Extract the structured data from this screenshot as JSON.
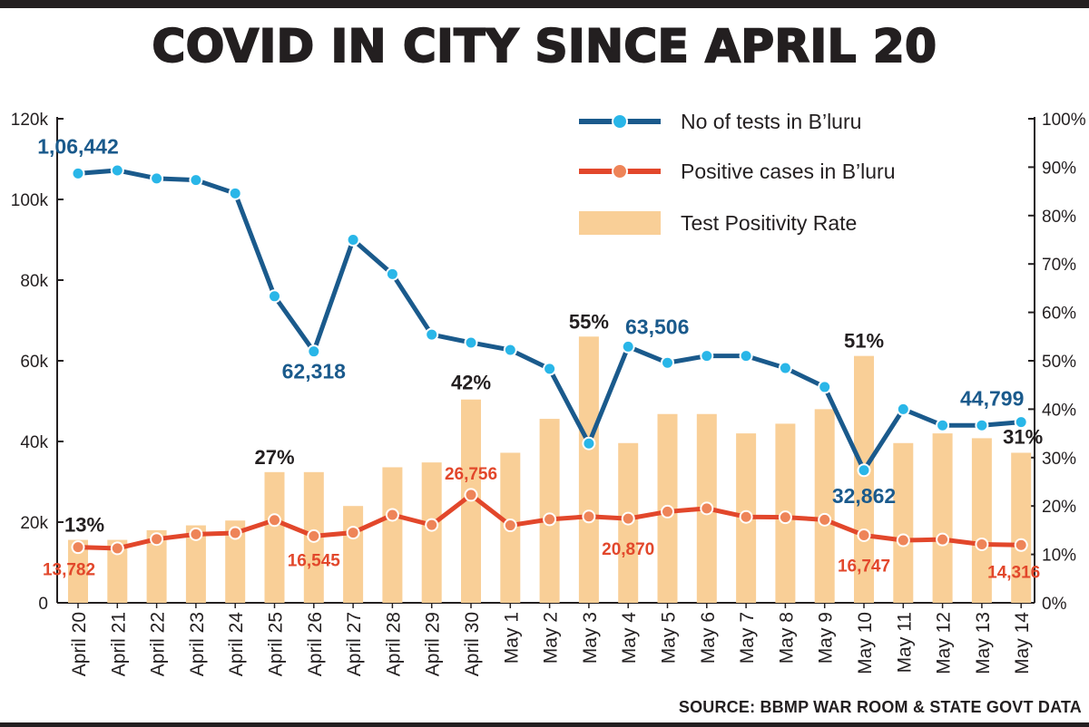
{
  "title": "COVID IN CITY SINCE APRIL 20",
  "source": "SOURCE: BBMP WAR ROOM & STATE GOVT DATA",
  "colors": {
    "tests": "#1a5a8c",
    "tests_marker": "#29b6e8",
    "positive": "#e2472b",
    "positive_marker": "#ee8458",
    "rate": "#f9cf97"
  },
  "chart_data": {
    "type": "bar+line",
    "categories": [
      "April 20",
      "April 21",
      "April 22",
      "April 23",
      "April 24",
      "April 25",
      "April 26",
      "April 27",
      "April 28",
      "April 29",
      "April 30",
      "May 1",
      "May 2",
      "May 3",
      "May 4",
      "May 5",
      "May 6",
      "May 7",
      "May 8",
      "May 9",
      "May 10",
      "May 11",
      "May 12",
      "May 13",
      "May 14"
    ],
    "series": [
      {
        "name": "No of tests in B’luru",
        "kind": "line",
        "axis": "left",
        "values": [
          106442,
          107200,
          105200,
          104800,
          101500,
          76000,
          62318,
          90000,
          81500,
          66500,
          64500,
          62700,
          58000,
          39500,
          63506,
          59500,
          61200,
          61200,
          58200,
          53500,
          32862,
          48000,
          44000,
          44000,
          44799
        ]
      },
      {
        "name": "Positive cases in B’luru",
        "kind": "line",
        "axis": "left",
        "values": [
          13782,
          13500,
          15800,
          17000,
          17300,
          20500,
          16545,
          17400,
          21800,
          19300,
          26756,
          19200,
          20700,
          21400,
          20870,
          22600,
          23400,
          21300,
          21200,
          20600,
          16747,
          15500,
          15700,
          14500,
          14316
        ]
      },
      {
        "name": "Test Positivity Rate",
        "kind": "bar",
        "axis": "right",
        "values": [
          13,
          13,
          15,
          16,
          17,
          27,
          27,
          20,
          28,
          29,
          42,
          31,
          38,
          55,
          33,
          39,
          39,
          35,
          37,
          40,
          51,
          33,
          35,
          34,
          31
        ]
      }
    ],
    "left_axis": {
      "ylim": [
        0,
        120000
      ],
      "ticks": [
        "0",
        "20k",
        "40k",
        "60k",
        "80k",
        "100k",
        "120k"
      ]
    },
    "right_axis": {
      "ylim": [
        0,
        100
      ],
      "ticks": [
        "0%",
        "10%",
        "20%",
        "30%",
        "40%",
        "50%",
        "60%",
        "70%",
        "80%",
        "90%",
        "100%"
      ]
    },
    "annotations": {
      "tests": [
        {
          "i": 0,
          "text": "1,06,442"
        },
        {
          "i": 6,
          "text": "62,318"
        },
        {
          "i": 14,
          "text": "63,506"
        },
        {
          "i": 20,
          "text": "32,862"
        },
        {
          "i": 24,
          "text": "44,799"
        }
      ],
      "positive": [
        {
          "i": 0,
          "text": "13,782"
        },
        {
          "i": 6,
          "text": "16,545"
        },
        {
          "i": 10,
          "text": "26,756"
        },
        {
          "i": 14,
          "text": "20,870"
        },
        {
          "i": 20,
          "text": "16,747"
        },
        {
          "i": 24,
          "text": "14,316"
        }
      ],
      "rate": [
        {
          "i": 0,
          "text": "13%"
        },
        {
          "i": 5,
          "text": "27%"
        },
        {
          "i": 10,
          "text": "42%"
        },
        {
          "i": 13,
          "text": "55%"
        },
        {
          "i": 20,
          "text": "51%"
        },
        {
          "i": 24,
          "text": "31%"
        }
      ]
    },
    "legend_position": "top-right"
  }
}
